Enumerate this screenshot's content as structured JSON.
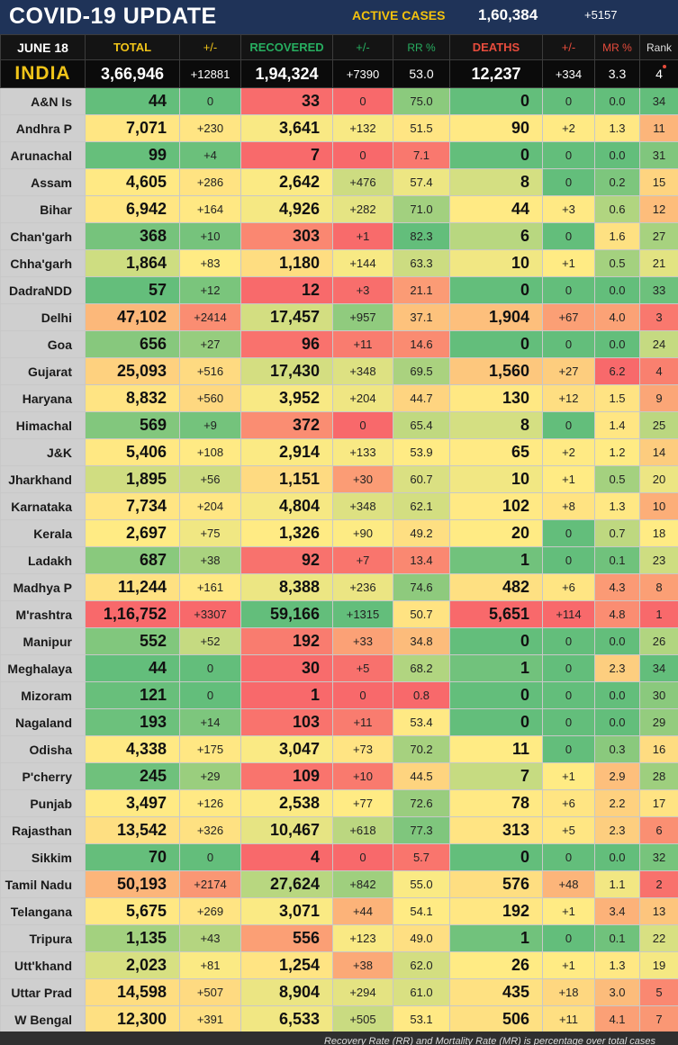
{
  "header": {
    "title": "COVID-19 UPDATE",
    "active_label": "ACTIVE CASES",
    "active_value": "1,60,384",
    "active_delta": "+5157"
  },
  "columns": {
    "date": "JUNE 18",
    "total": "TOTAL",
    "total_delta": "+/-",
    "recovered": "RECOVERED",
    "recovered_delta": "+/-",
    "rr": "RR %",
    "deaths": "DEATHS",
    "deaths_delta": "+/-",
    "mr": "MR %",
    "rank": "Rank"
  },
  "india": {
    "name": "INDIA",
    "total": "3,66,946",
    "total_delta": "+12881",
    "recovered": "1,94,324",
    "recovered_delta": "+7390",
    "rr": "53.0",
    "deaths": "12,237",
    "deaths_delta": "+334",
    "mr": "3.3",
    "rank": "4"
  },
  "rows": [
    {
      "name": "A&N Is",
      "total": "44",
      "td": "0",
      "rec": "33",
      "rd": "0",
      "rr": "75.0",
      "deaths": "0",
      "dd": "0",
      "mr": "0.0",
      "rank": "34"
    },
    {
      "name": "Andhra P",
      "total": "7,071",
      "td": "+230",
      "rec": "3,641",
      "rd": "+132",
      "rr": "51.5",
      "deaths": "90",
      "dd": "+2",
      "mr": "1.3",
      "rank": "11"
    },
    {
      "name": "Arunachal",
      "total": "99",
      "td": "+4",
      "rec": "7",
      "rd": "0",
      "rr": "7.1",
      "deaths": "0",
      "dd": "0",
      "mr": "0.0",
      "rank": "31"
    },
    {
      "name": "Assam",
      "total": "4,605",
      "td": "+286",
      "rec": "2,642",
      "rd": "+476",
      "rr": "57.4",
      "deaths": "8",
      "dd": "0",
      "mr": "0.2",
      "rank": "15"
    },
    {
      "name": "Bihar",
      "total": "6,942",
      "td": "+164",
      "rec": "4,926",
      "rd": "+282",
      "rr": "71.0",
      "deaths": "44",
      "dd": "+3",
      "mr": "0.6",
      "rank": "12"
    },
    {
      "name": "Chan'garh",
      "total": "368",
      "td": "+10",
      "rec": "303",
      "rd": "+1",
      "rr": "82.3",
      "deaths": "6",
      "dd": "0",
      "mr": "1.6",
      "rank": "27"
    },
    {
      "name": "Chha'garh",
      "total": "1,864",
      "td": "+83",
      "rec": "1,180",
      "rd": "+144",
      "rr": "63.3",
      "deaths": "10",
      "dd": "+1",
      "mr": "0.5",
      "rank": "21"
    },
    {
      "name": "DadraNDD",
      "total": "57",
      "td": "+12",
      "rec": "12",
      "rd": "+3",
      "rr": "21.1",
      "deaths": "0",
      "dd": "0",
      "mr": "0.0",
      "rank": "33"
    },
    {
      "name": "Delhi",
      "total": "47,102",
      "td": "+2414",
      "rec": "17,457",
      "rd": "+957",
      "rr": "37.1",
      "deaths": "1,904",
      "dd": "+67",
      "mr": "4.0",
      "rank": "3"
    },
    {
      "name": "Goa",
      "total": "656",
      "td": "+27",
      "rec": "96",
      "rd": "+11",
      "rr": "14.6",
      "deaths": "0",
      "dd": "0",
      "mr": "0.0",
      "rank": "24"
    },
    {
      "name": "Gujarat",
      "total": "25,093",
      "td": "+516",
      "rec": "17,430",
      "rd": "+348",
      "rr": "69.5",
      "deaths": "1,560",
      "dd": "+27",
      "mr": "6.2",
      "rank": "4"
    },
    {
      "name": "Haryana",
      "total": "8,832",
      "td": "+560",
      "rec": "3,952",
      "rd": "+204",
      "rr": "44.7",
      "deaths": "130",
      "dd": "+12",
      "mr": "1.5",
      "rank": "9"
    },
    {
      "name": "Himachal",
      "total": "569",
      "td": "+9",
      "rec": "372",
      "rd": "0",
      "rr": "65.4",
      "deaths": "8",
      "dd": "0",
      "mr": "1.4",
      "rank": "25"
    },
    {
      "name": "J&K",
      "total": "5,406",
      "td": "+108",
      "rec": "2,914",
      "rd": "+133",
      "rr": "53.9",
      "deaths": "65",
      "dd": "+2",
      "mr": "1.2",
      "rank": "14"
    },
    {
      "name": "Jharkhand",
      "total": "1,895",
      "td": "+56",
      "rec": "1,151",
      "rd": "+30",
      "rr": "60.7",
      "deaths": "10",
      "dd": "+1",
      "mr": "0.5",
      "rank": "20"
    },
    {
      "name": "Karnataka",
      "total": "7,734",
      "td": "+204",
      "rec": "4,804",
      "rd": "+348",
      "rr": "62.1",
      "deaths": "102",
      "dd": "+8",
      "mr": "1.3",
      "rank": "10"
    },
    {
      "name": "Kerala",
      "total": "2,697",
      "td": "+75",
      "rec": "1,326",
      "rd": "+90",
      "rr": "49.2",
      "deaths": "20",
      "dd": "0",
      "mr": "0.7",
      "rank": "18"
    },
    {
      "name": "Ladakh",
      "total": "687",
      "td": "+38",
      "rec": "92",
      "rd": "+7",
      "rr": "13.4",
      "deaths": "1",
      "dd": "0",
      "mr": "0.1",
      "rank": "23"
    },
    {
      "name": "Madhya P",
      "total": "11,244",
      "td": "+161",
      "rec": "8,388",
      "rd": "+236",
      "rr": "74.6",
      "deaths": "482",
      "dd": "+6",
      "mr": "4.3",
      "rank": "8"
    },
    {
      "name": "M'rashtra",
      "total": "1,16,752",
      "td": "+3307",
      "rec": "59,166",
      "rd": "+1315",
      "rr": "50.7",
      "deaths": "5,651",
      "dd": "+114",
      "mr": "4.8",
      "rank": "1"
    },
    {
      "name": "Manipur",
      "total": "552",
      "td": "+52",
      "rec": "192",
      "rd": "+33",
      "rr": "34.8",
      "deaths": "0",
      "dd": "0",
      "mr": "0.0",
      "rank": "26"
    },
    {
      "name": "Meghalaya",
      "total": "44",
      "td": "0",
      "rec": "30",
      "rd": "+5",
      "rr": "68.2",
      "deaths": "1",
      "dd": "0",
      "mr": "2.3",
      "rank": "34"
    },
    {
      "name": "Mizoram",
      "total": "121",
      "td": "0",
      "rec": "1",
      "rd": "0",
      "rr": "0.8",
      "deaths": "0",
      "dd": "0",
      "mr": "0.0",
      "rank": "30"
    },
    {
      "name": "Nagaland",
      "total": "193",
      "td": "+14",
      "rec": "103",
      "rd": "+11",
      "rr": "53.4",
      "deaths": "0",
      "dd": "0",
      "mr": "0.0",
      "rank": "29"
    },
    {
      "name": "Odisha",
      "total": "4,338",
      "td": "+175",
      "rec": "3,047",
      "rd": "+73",
      "rr": "70.2",
      "deaths": "11",
      "dd": "0",
      "mr": "0.3",
      "rank": "16"
    },
    {
      "name": "P'cherry",
      "total": "245",
      "td": "+29",
      "rec": "109",
      "rd": "+10",
      "rr": "44.5",
      "deaths": "7",
      "dd": "+1",
      "mr": "2.9",
      "rank": "28"
    },
    {
      "name": "Punjab",
      "total": "3,497",
      "td": "+126",
      "rec": "2,538",
      "rd": "+77",
      "rr": "72.6",
      "deaths": "78",
      "dd": "+6",
      "mr": "2.2",
      "rank": "17"
    },
    {
      "name": "Rajasthan",
      "total": "13,542",
      "td": "+326",
      "rec": "10,467",
      "rd": "+618",
      "rr": "77.3",
      "deaths": "313",
      "dd": "+5",
      "mr": "2.3",
      "rank": "6"
    },
    {
      "name": "Sikkim",
      "total": "70",
      "td": "0",
      "rec": "4",
      "rd": "0",
      "rr": "5.7",
      "deaths": "0",
      "dd": "0",
      "mr": "0.0",
      "rank": "32"
    },
    {
      "name": "Tamil Nadu",
      "total": "50,193",
      "td": "+2174",
      "rec": "27,624",
      "rd": "+842",
      "rr": "55.0",
      "deaths": "576",
      "dd": "+48",
      "mr": "1.1",
      "rank": "2"
    },
    {
      "name": "Telangana",
      "total": "5,675",
      "td": "+269",
      "rec": "3,071",
      "rd": "+44",
      "rr": "54.1",
      "deaths": "192",
      "dd": "+1",
      "mr": "3.4",
      "rank": "13"
    },
    {
      "name": "Tripura",
      "total": "1,135",
      "td": "+43",
      "rec": "556",
      "rd": "+123",
      "rr": "49.0",
      "deaths": "1",
      "dd": "0",
      "mr": "0.1",
      "rank": "22"
    },
    {
      "name": "Utt'khand",
      "total": "2,023",
      "td": "+81",
      "rec": "1,254",
      "rd": "+38",
      "rr": "62.0",
      "deaths": "26",
      "dd": "+1",
      "mr": "1.3",
      "rank": "19"
    },
    {
      "name": "Uttar Prad",
      "total": "14,598",
      "td": "+507",
      "rec": "8,904",
      "rd": "+294",
      "rr": "61.0",
      "deaths": "435",
      "dd": "+18",
      "mr": "3.0",
      "rank": "5"
    },
    {
      "name": "W Bengal",
      "total": "12,300",
      "td": "+391",
      "rec": "6,533",
      "rd": "+505",
      "rr": "53.1",
      "deaths": "506",
      "dd": "+11",
      "mr": "4.1",
      "rank": "7"
    }
  ],
  "footer": {
    "note": "Recovery Rate (RR) and Mortality Rate (MR) is percentage over total cases"
  },
  "colors": {
    "banner": "#1f3358",
    "green": "#63be7b",
    "yellow": "#ffeb84",
    "red": "#f8696b",
    "name_cell": "#cfcfcf"
  }
}
